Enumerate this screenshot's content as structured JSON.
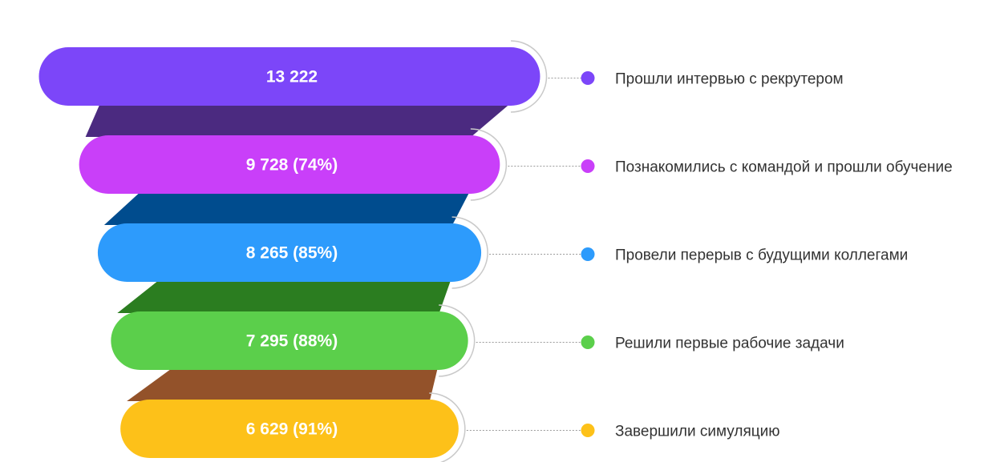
{
  "chart_data": {
    "type": "funnel",
    "stages": [
      {
        "label": "Прошли интервью с рекрутером",
        "value": 13222,
        "value_label": "13 222",
        "color": "#7c46f9",
        "connector_color": "#4b2a80"
      },
      {
        "label": "Познакомились с командой и прошли обучение",
        "value": 9728,
        "percent": 74,
        "value_label": "9 728 (74%)",
        "color": "#c93ff9",
        "connector_color": "#004c8e"
      },
      {
        "label": "Провели перерыв с будущими коллегами",
        "value": 8265,
        "percent": 85,
        "value_label": "8 265 (85%)",
        "color": "#2d9bfc",
        "connector_color": "#2b7d20"
      },
      {
        "label": "Решили первые рабочие задачи",
        "value": 7295,
        "percent": 88,
        "value_label": "7 295 (88%)",
        "color": "#5bcf4b",
        "connector_color": "#93522a"
      },
      {
        "label": "Завершили симуляцию",
        "value": 6629,
        "percent": 91,
        "value_label": "6 629 (91%)",
        "color": "#fdc119"
      }
    ]
  }
}
